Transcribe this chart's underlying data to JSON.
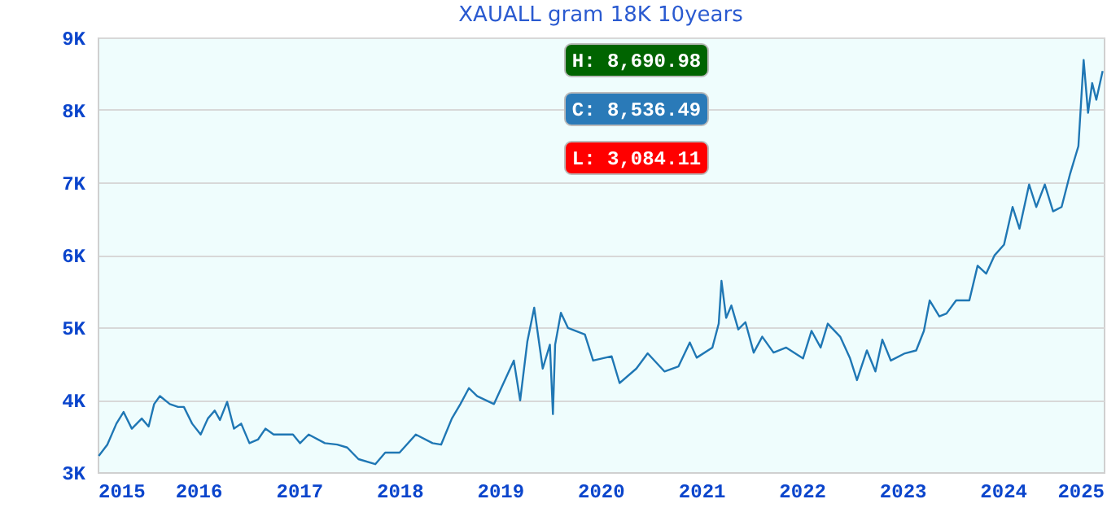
{
  "chart_data": {
    "type": "line",
    "title": "XAUALL gram 18K 10years",
    "annotations": [
      "H: 8,690.98",
      "C: 8,536.49",
      "L: 3,084.11"
    ],
    "x": [
      "2015-01-05",
      "2015-02-05",
      "2015-03-10",
      "2015-04-05",
      "2015-05-05",
      "2015-06-10",
      "2015-07-05",
      "2015-07-25",
      "2015-08-15",
      "2015-09-20",
      "2015-10-20",
      "2015-11-10",
      "2015-12-10",
      "2016-01-10",
      "2016-02-05",
      "2016-03-01",
      "2016-03-20",
      "2016-04-15",
      "2016-05-10",
      "2016-06-05",
      "2016-07-05",
      "2016-08-05",
      "2016-09-01",
      "2016-10-01",
      "2016-12-10",
      "2017-01-05",
      "2017-02-05",
      "2017-04-05",
      "2017-05-20",
      "2017-06-25",
      "2017-08-05",
      "2017-10-05",
      "2017-11-10",
      "2018-01-01",
      "2018-03-01",
      "2018-05-01",
      "2018-06-01",
      "2018-07-10",
      "2018-08-10",
      "2018-09-10",
      "2018-10-10",
      "2018-12-10",
      "2019-01-10",
      "2019-02-20",
      "2019-03-15",
      "2019-04-10",
      "2019-05-05",
      "2019-06-05",
      "2019-07-01",
      "2019-07-12",
      "2019-07-20",
      "2019-08-10",
      "2019-09-05",
      "2019-11-05",
      "2019-12-05",
      "2020-02-10",
      "2020-03-10",
      "2020-05-10",
      "2020-06-20",
      "2020-08-20",
      "2020-10-10",
      "2020-11-20",
      "2020-12-15",
      "2021-02-10",
      "2021-03-05",
      "2021-03-15",
      "2021-04-01",
      "2021-04-20",
      "2021-05-15",
      "2021-06-10",
      "2021-07-10",
      "2021-08-10",
      "2021-09-20",
      "2021-11-05",
      "2022-01-05",
      "2022-02-05",
      "2022-03-10",
      "2022-04-05",
      "2022-05-20",
      "2022-06-25",
      "2022-07-20",
      "2022-08-25",
      "2022-09-25",
      "2022-10-20",
      "2022-11-20",
      "2023-01-10",
      "2023-02-20",
      "2023-03-20",
      "2023-04-10",
      "2023-05-15",
      "2023-06-10",
      "2023-07-15",
      "2023-09-01",
      "2023-10-01",
      "2023-11-01",
      "2023-12-01",
      "2024-01-05",
      "2024-02-05",
      "2024-03-01",
      "2024-04-05",
      "2024-05-01",
      "2024-06-01",
      "2024-07-01",
      "2024-08-01",
      "2024-09-01",
      "2024-10-01",
      "2024-10-20",
      "2024-11-05",
      "2024-11-20",
      "2024-12-05",
      "2024-12-28"
    ],
    "series": [
      {
        "color": "#1f77b4",
        "values": [
          3225,
          3380,
          3670,
          3830,
          3600,
          3740,
          3630,
          3940,
          4050,
          3940,
          3900,
          3900,
          3670,
          3520,
          3740,
          3850,
          3720,
          3970,
          3600,
          3670,
          3400,
          3450,
          3600,
          3520,
          3520,
          3400,
          3520,
          3400,
          3380,
          3340,
          3180,
          3110,
          3270,
          3270,
          3520,
          3400,
          3380,
          3740,
          3940,
          4160,
          4050,
          3940,
          4200,
          4540,
          3990,
          4800,
          5270,
          4430,
          4760,
          3800,
          4760,
          5200,
          4990,
          4900,
          4540,
          4600,
          4230,
          4430,
          4640,
          4390,
          4460,
          4790,
          4580,
          4720,
          5050,
          5640,
          5130,
          5300,
          4970,
          5070,
          4650,
          4870,
          4650,
          4720,
          4570,
          4950,
          4720,
          5050,
          4870,
          4570,
          4270,
          4680,
          4390,
          4830,
          4540,
          4640,
          4680,
          4950,
          5370,
          5150,
          5190,
          5370,
          5370,
          5850,
          5740,
          5990,
          6140,
          6660,
          6360,
          6970,
          6660,
          6970,
          6600,
          6660,
          7120,
          7500,
          8690,
          7960,
          8370,
          8140,
          8536
        ]
      }
    ],
    "xlim": [
      "2015-01-01",
      "2025-01-01"
    ],
    "xticks": [
      "2015",
      "2016",
      "2017",
      "2018",
      "2019",
      "2020",
      "2021",
      "2022",
      "2023",
      "2024",
      "2025"
    ],
    "ylim": [
      3000,
      9000
    ],
    "yticks": [
      {
        "value": 3000,
        "label": "3K"
      },
      {
        "value": 4000,
        "label": "4K"
      },
      {
        "value": 5000,
        "label": "5K"
      },
      {
        "value": 6000,
        "label": "6K"
      },
      {
        "value": 7000,
        "label": "7K"
      },
      {
        "value": 8000,
        "label": "8K"
      },
      {
        "value": 9000,
        "label": "9K"
      }
    ],
    "grid": "y"
  }
}
